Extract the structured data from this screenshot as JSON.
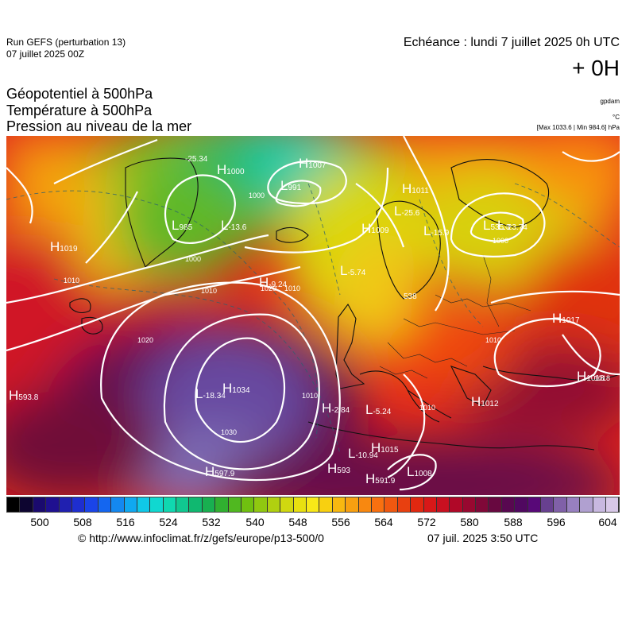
{
  "header": {
    "run_title": "Run GEFS (perturbation 13)",
    "run_date": "07 juillet 2025 00Z",
    "valid_time": "Echéance : lundi 7 juillet 2025 0h UTC",
    "offset": "+ 0H"
  },
  "parameters": [
    "Géopotentiel à 500hPa",
    "Température à 500hPa",
    "Pression au niveau de la mer"
  ],
  "units": {
    "geopotential": "gpdam",
    "temperature": "°C",
    "pressure": "[Max 1033.6 | Min 984.6] hPa"
  },
  "colorbar": {
    "ticks": [
      "500",
      "508",
      "516",
      "524",
      "532",
      "540",
      "548",
      "556",
      "564",
      "572",
      "580",
      "588",
      "596",
      "604"
    ],
    "colors": [
      "#000000",
      "#0d0530",
      "#1a0a6e",
      "#1f1090",
      "#2020b0",
      "#1e2ed0",
      "#1a44e8",
      "#1466f0",
      "#1488f0",
      "#10a8f0",
      "#10c8e8",
      "#10d8d0",
      "#10d8b0",
      "#10c890",
      "#10b870",
      "#18b050",
      "#30b030",
      "#50b820",
      "#70c010",
      "#90c810",
      "#b0d010",
      "#d0d810",
      "#e8e010",
      "#f8e818",
      "#f8d010",
      "#f8b810",
      "#f8a010",
      "#f88810",
      "#f87010",
      "#f05810",
      "#e84010",
      "#e02810",
      "#d81818",
      "#c81020",
      "#b00828",
      "#980830",
      "#800838",
      "#680840",
      "#580850",
      "#500860",
      "#580878",
      "#684090",
      "#8060a8",
      "#9880c0",
      "#b0a0d0",
      "#c8b8e0",
      "#d8c8e8"
    ]
  },
  "map_labels": [
    {
      "letter": "H",
      "value": "1000"
    },
    {
      "letter": "H",
      "value": "1007"
    },
    {
      "letter": "L",
      "value": "991"
    },
    {
      "letter": "L",
      "value": "985"
    },
    {
      "letter": "H",
      "value": "1011"
    },
    {
      "letter": "H",
      "value": "1009"
    },
    {
      "letter": "H",
      "value": "1019"
    },
    {
      "letter": "H",
      "value": "-9.24"
    },
    {
      "letter": "L",
      "value": "-18.34"
    },
    {
      "letter": "H",
      "value": "1034"
    },
    {
      "letter": "H",
      "value": "593.8"
    },
    {
      "letter": "H",
      "value": "-2.84"
    },
    {
      "letter": "L",
      "value": "-5.24"
    },
    {
      "letter": "H",
      "value": "1015"
    },
    {
      "letter": "L",
      "value": "-10.94"
    },
    {
      "letter": "H",
      "value": "593"
    },
    {
      "letter": "H",
      "value": "591.9"
    },
    {
      "letter": "L",
      "value": "1008"
    },
    {
      "letter": "H",
      "value": "597.9"
    },
    {
      "letter": "H",
      "value": "1017"
    },
    {
      "letter": "H",
      "value": "1018"
    },
    {
      "letter": "H",
      "value": "1012"
    },
    {
      "letter": "L",
      "value": "535.3"
    },
    {
      "letter": "L",
      "value": "-23.74"
    },
    {
      "letter": "L",
      "value": "-25.6"
    },
    {
      "letter": "L",
      "value": "-15.9"
    },
    {
      "letter": "L",
      "value": "-5.74"
    },
    {
      "letter": "L",
      "value": "-13.6"
    },
    {
      "letter": "",
      "value": "-25.34"
    },
    {
      "letter": "",
      "value": "538"
    }
  ],
  "isobar_labels": [
    "1000",
    "1000",
    "1010",
    "1010",
    "1010",
    "1020",
    "1020",
    "1030",
    "1010",
    "1010",
    "1010",
    "1018",
    "1000"
  ],
  "footer": {
    "copyright": "© http://www.infoclimat.fr/z/gefs/europe/p13-500/0",
    "issued": "07 juil. 2025  3:50 UTC"
  }
}
